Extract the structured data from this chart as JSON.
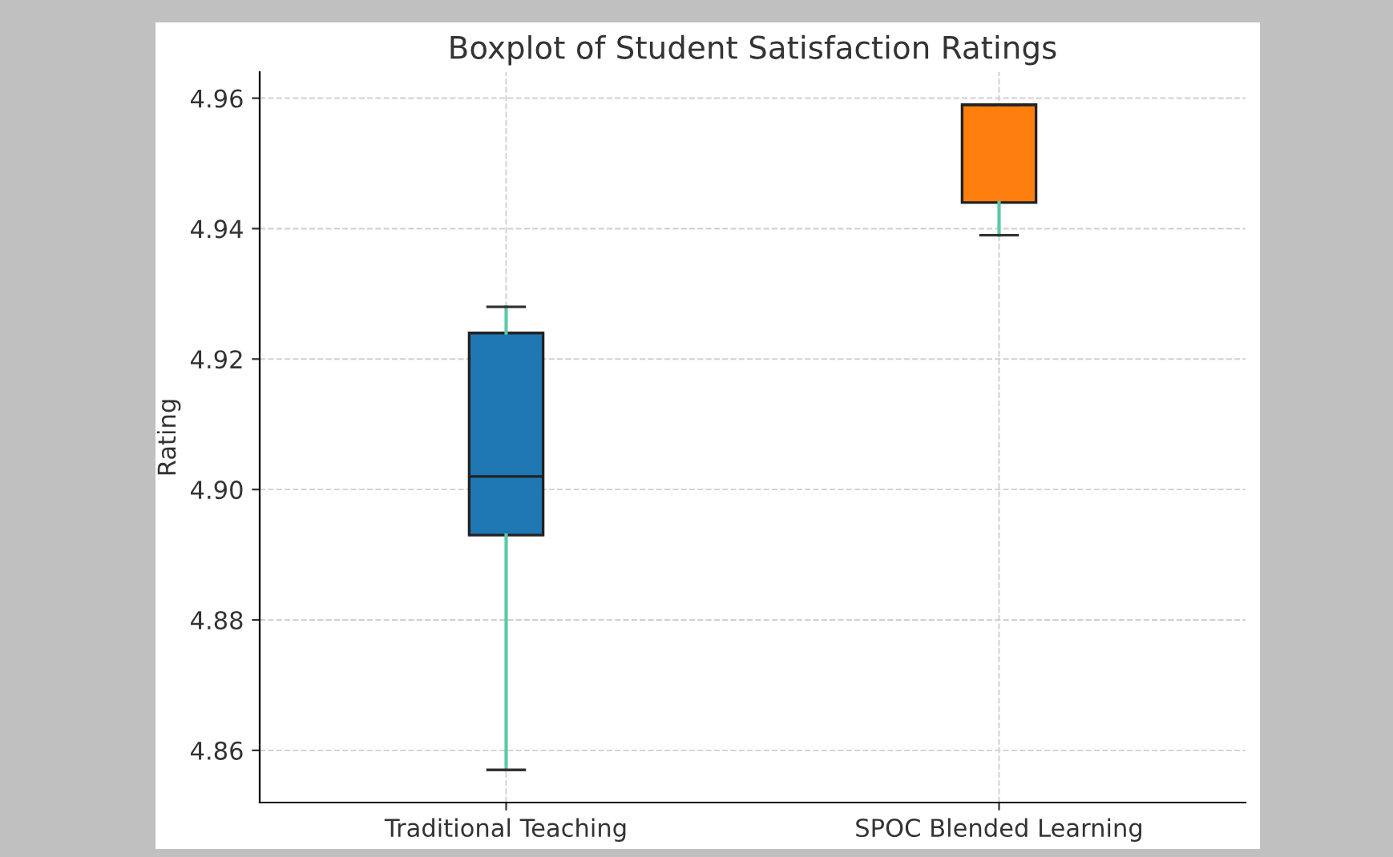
{
  "chart_data": {
    "type": "box",
    "title": "Boxplot of Student Satisfaction Ratings",
    "ylabel": "Rating",
    "categories": [
      "Traditional Teaching",
      "SPOC Blended Learning"
    ],
    "colors": [
      "#1f77b4",
      "#ff7f0e"
    ],
    "boxes": [
      {
        "low": 4.857,
        "q1": 4.893,
        "median": 4.902,
        "q3": 4.924,
        "high": 4.928
      },
      {
        "low": 4.939,
        "q1": 4.944,
        "median": 4.959,
        "q3": 4.959,
        "high": 4.959
      }
    ],
    "ylim": [
      4.852,
      4.964
    ],
    "yticks": [
      4.86,
      4.88,
      {
        "value": 4.9,
        "label": "4.90"
      },
      4.92,
      4.94,
      4.96
    ],
    "grid": true
  }
}
